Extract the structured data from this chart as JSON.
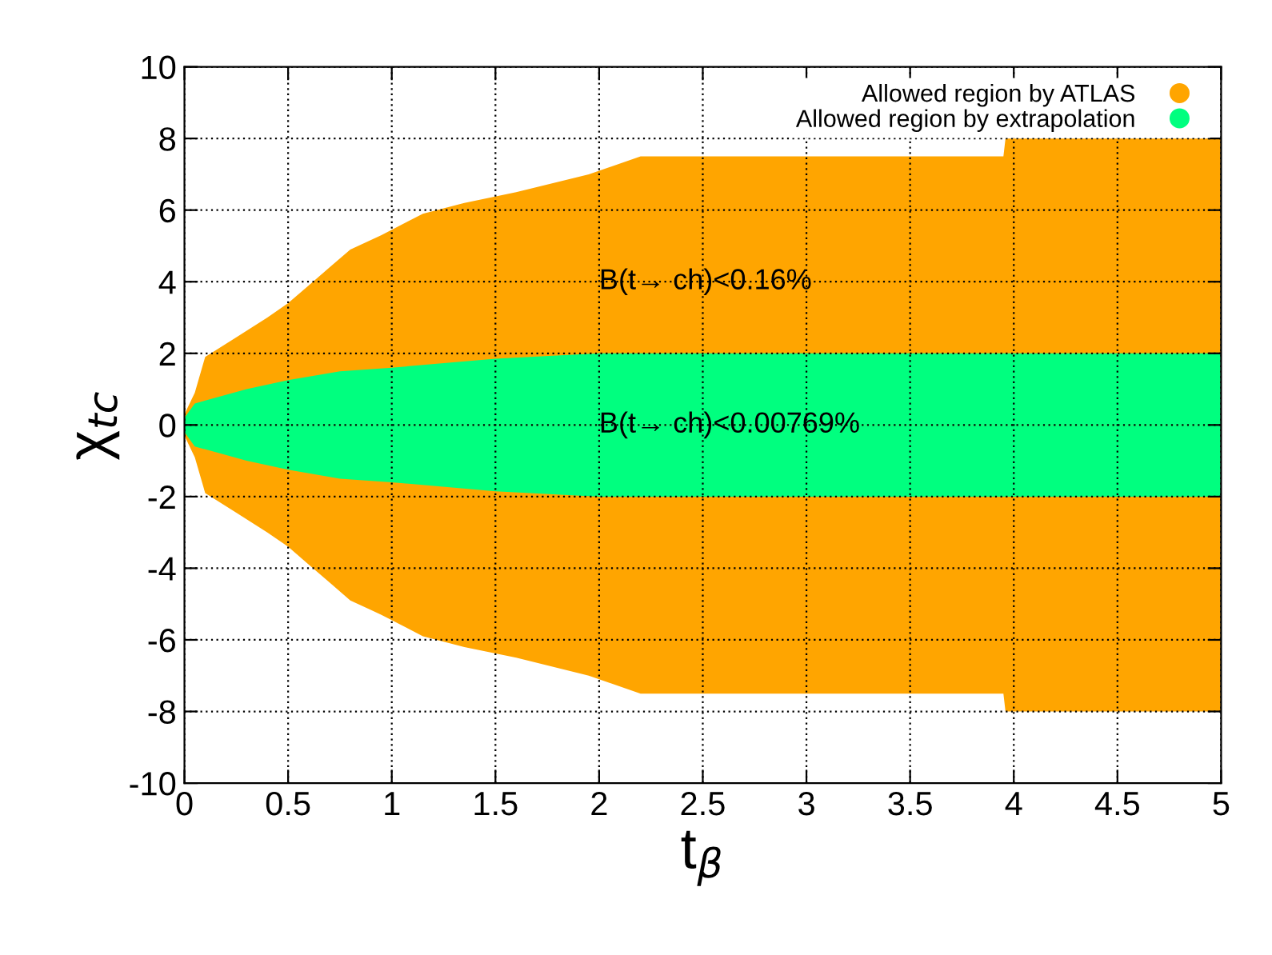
{
  "chart_data": {
    "type": "area",
    "xlabel": "t$_{β}$",
    "ylabel": "χ$_{tc}$",
    "xlim": [
      0,
      5
    ],
    "ylim": [
      -10,
      10
    ],
    "xticks": [
      0,
      0.5,
      1,
      1.5,
      2,
      2.5,
      3,
      3.5,
      4,
      4.5,
      5
    ],
    "yticks": [
      -10,
      -8,
      -6,
      -4,
      -2,
      0,
      2,
      4,
      6,
      8,
      10
    ],
    "grid": true,
    "legend": "top right",
    "series": [
      {
        "name": "Allowed region by ATLAS",
        "color": "#ffa500",
        "x": [
          0,
          0.05,
          0.1,
          0.25,
          0.4,
          0.5,
          0.6,
          0.7,
          0.8,
          0.95,
          1.15,
          1.35,
          1.6,
          1.95,
          2.2,
          3.95,
          3.96,
          5
        ],
        "values": [
          0.3,
          0.9,
          1.9,
          2.45,
          3.0,
          3.4,
          3.9,
          4.4,
          4.9,
          5.3,
          5.9,
          6.2,
          6.5,
          7.0,
          7.5,
          7.5,
          8.0,
          8.0
        ]
      },
      {
        "color": "#ffa500",
        "x": [
          0,
          0.05,
          0.1,
          0.25,
          0.4,
          0.5,
          0.6,
          0.7,
          0.8,
          0.95,
          1.15,
          1.35,
          1.6,
          1.95,
          2.2,
          3.95,
          3.96,
          5
        ],
        "values": [
          -0.3,
          -0.9,
          -1.9,
          -2.45,
          -3.0,
          -3.4,
          -3.9,
          -4.4,
          -4.9,
          -5.3,
          -5.9,
          -6.2,
          -6.5,
          -7.0,
          -7.5,
          -7.5,
          -8.0,
          -8.0
        ]
      },
      {
        "name": "Allowed region by extrapolation",
        "color": "#00ff7f",
        "x": [
          0,
          0.05,
          0.3,
          0.5,
          0.75,
          1.0,
          1.5,
          2.0,
          5
        ],
        "values": [
          0.2,
          0.6,
          1.0,
          1.25,
          1.5,
          1.6,
          1.85,
          2.0,
          2.0
        ]
      },
      {
        "color": "#00ff7f",
        "x": [
          0,
          0.05,
          0.3,
          0.5,
          0.75,
          1.0,
          1.5,
          2.0,
          5
        ],
        "values": [
          -0.2,
          -0.6,
          -1.0,
          -1.25,
          -1.5,
          -1.6,
          -1.85,
          -2.0,
          -2.0
        ]
      }
    ],
    "annotations": [
      "B(t→ ch)<0.16%",
      "B(t→ ch)<0.00769%"
    ]
  }
}
